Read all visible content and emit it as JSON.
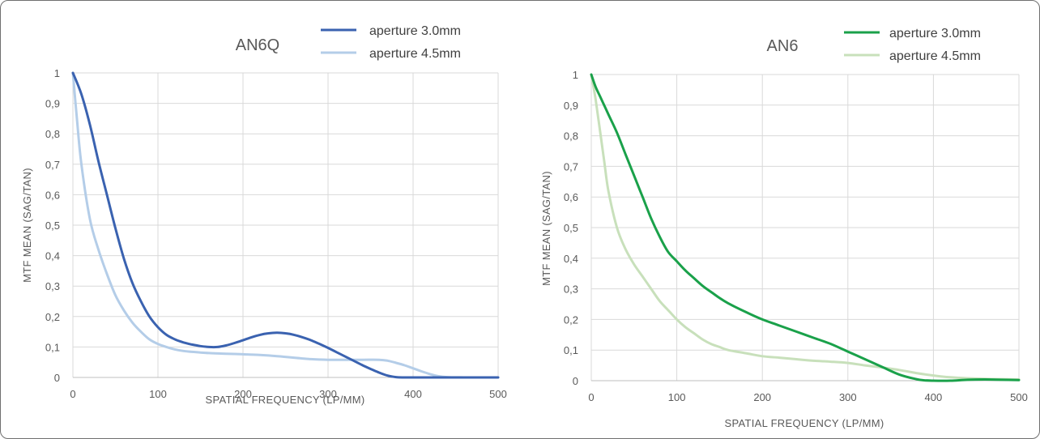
{
  "chart_data": [
    {
      "type": "line",
      "title": "AN6Q",
      "xlabel": "SPATIAL FREQUENCY (LP/MM)",
      "ylabel": "MTF MEAN (SAG/TAN)",
      "xlim": [
        0,
        500
      ],
      "ylim": [
        0,
        1
      ],
      "x_ticks": [
        "0",
        "100",
        "200",
        "300",
        "400",
        "500"
      ],
      "y_ticks": [
        "0",
        "0,1",
        "0,2",
        "0,3",
        "0,4",
        "0,5",
        "0,6",
        "0,7",
        "0,8",
        "0,9",
        "1"
      ],
      "grid": true,
      "legend_position": "top",
      "series": [
        {
          "name": "aperture 3.0mm",
          "color": "#3a62b0",
          "x": [
            0,
            10,
            20,
            30,
            40,
            50,
            60,
            70,
            80,
            90,
            100,
            110,
            120,
            130,
            140,
            150,
            160,
            170,
            180,
            190,
            200,
            210,
            220,
            230,
            240,
            250,
            260,
            270,
            280,
            290,
            300,
            310,
            320,
            330,
            340,
            350,
            360,
            370,
            380,
            390,
            400,
            450,
            500
          ],
          "y": [
            1.0,
            0.93,
            0.83,
            0.71,
            0.6,
            0.49,
            0.39,
            0.31,
            0.25,
            0.2,
            0.165,
            0.14,
            0.125,
            0.115,
            0.108,
            0.103,
            0.1,
            0.1,
            0.105,
            0.113,
            0.122,
            0.132,
            0.14,
            0.145,
            0.147,
            0.145,
            0.14,
            0.132,
            0.122,
            0.11,
            0.097,
            0.083,
            0.069,
            0.055,
            0.041,
            0.028,
            0.016,
            0.006,
            0.001,
            0.0,
            0.0,
            0.0,
            0.0
          ]
        },
        {
          "name": "aperture 4.5mm",
          "color": "#b4cde8",
          "x": [
            0,
            5,
            10,
            20,
            30,
            40,
            50,
            60,
            70,
            80,
            90,
            100,
            110,
            120,
            130,
            140,
            150,
            160,
            180,
            200,
            220,
            240,
            260,
            280,
            300,
            320,
            340,
            360,
            370,
            380,
            390,
            400,
            410,
            420,
            430,
            440,
            460,
            480,
            500
          ],
          "y": [
            1.0,
            0.84,
            0.7,
            0.52,
            0.42,
            0.34,
            0.27,
            0.22,
            0.18,
            0.15,
            0.125,
            0.11,
            0.1,
            0.092,
            0.087,
            0.084,
            0.082,
            0.08,
            0.078,
            0.076,
            0.074,
            0.07,
            0.065,
            0.06,
            0.058,
            0.058,
            0.058,
            0.058,
            0.055,
            0.048,
            0.04,
            0.03,
            0.02,
            0.011,
            0.004,
            0.001,
            0.0,
            0.0,
            0.0
          ]
        }
      ]
    },
    {
      "type": "line",
      "title": "AN6",
      "xlabel": "SPATIAL FREQUENCY (LP/MM)",
      "ylabel": "MTF MEAN (SAG/TAN)",
      "xlim": [
        0,
        500
      ],
      "ylim": [
        0,
        1
      ],
      "x_ticks": [
        "0",
        "100",
        "200",
        "300",
        "400",
        "500"
      ],
      "y_ticks": [
        "0",
        "0,1",
        "0,2",
        "0,3",
        "0,4",
        "0,5",
        "0,6",
        "0,7",
        "0,8",
        "0,9",
        "1"
      ],
      "grid": true,
      "legend_position": "top",
      "series": [
        {
          "name": "aperture 3.0mm",
          "color": "#1aa14a",
          "x": [
            0,
            5,
            10,
            20,
            30,
            40,
            50,
            60,
            70,
            80,
            90,
            100,
            110,
            120,
            130,
            140,
            150,
            160,
            180,
            200,
            220,
            240,
            260,
            280,
            300,
            320,
            340,
            360,
            380,
            390,
            400,
            420,
            440,
            460,
            480,
            500
          ],
          "y": [
            1.0,
            0.96,
            0.93,
            0.87,
            0.81,
            0.74,
            0.67,
            0.6,
            0.53,
            0.47,
            0.42,
            0.39,
            0.36,
            0.335,
            0.31,
            0.29,
            0.27,
            0.253,
            0.225,
            0.2,
            0.18,
            0.16,
            0.14,
            0.12,
            0.095,
            0.07,
            0.045,
            0.02,
            0.005,
            0.001,
            0.0,
            0.0,
            0.003,
            0.004,
            0.003,
            0.002
          ]
        },
        {
          "name": "aperture 4.5mm",
          "color": "#c8e0bb",
          "x": [
            0,
            5,
            10,
            15,
            20,
            30,
            40,
            50,
            60,
            70,
            80,
            90,
            100,
            110,
            120,
            130,
            140,
            150,
            160,
            180,
            200,
            220,
            240,
            260,
            280,
            300,
            320,
            340,
            360,
            380,
            400,
            420,
            440,
            460,
            480,
            500
          ],
          "y": [
            1.0,
            0.92,
            0.82,
            0.72,
            0.62,
            0.5,
            0.43,
            0.38,
            0.34,
            0.3,
            0.26,
            0.23,
            0.2,
            0.175,
            0.155,
            0.135,
            0.12,
            0.11,
            0.1,
            0.09,
            0.08,
            0.075,
            0.07,
            0.065,
            0.062,
            0.058,
            0.05,
            0.043,
            0.035,
            0.025,
            0.017,
            0.011,
            0.008,
            0.006,
            0.005,
            0.004
          ]
        }
      ]
    }
  ]
}
